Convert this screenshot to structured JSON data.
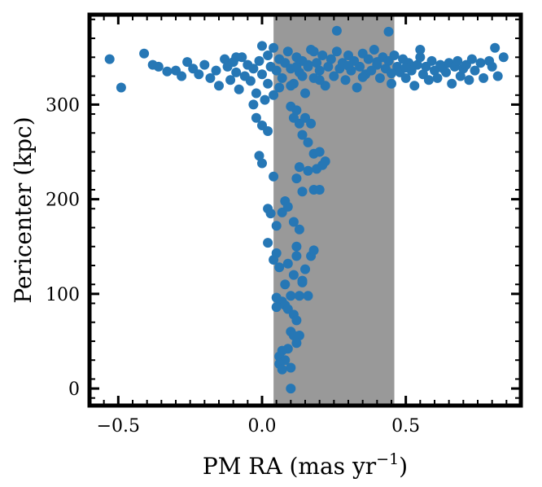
{
  "chart_data": {
    "type": "scatter",
    "xlabel": "PM RA (mas yr",
    "xlabel_sup": "−1",
    "xlabel_end": ")",
    "ylabel": "Pericenter (kpc)",
    "xlim": [
      -0.6,
      0.9
    ],
    "ylim": [
      -18,
      395
    ],
    "xticks": [
      {
        "value": -0.5,
        "label": "−0.5"
      },
      {
        "value": 0.0,
        "label": "0.0"
      },
      {
        "value": 0.5,
        "label": "0.5"
      }
    ],
    "yticks": [
      {
        "value": 0,
        "label": "0"
      },
      {
        "value": 100,
        "label": "100"
      },
      {
        "value": 200,
        "label": "200"
      },
      {
        "value": 300,
        "label": "300"
      }
    ],
    "shaded_band": {
      "x0": 0.04,
      "x1": 0.46,
      "color": "#999999"
    },
    "point_color": "#2677b5",
    "grid": false,
    "series": [
      {
        "points": [
          [
            -0.53,
            348
          ],
          [
            -0.49,
            318
          ],
          [
            -0.41,
            354
          ],
          [
            -0.38,
            342
          ],
          [
            -0.36,
            340
          ],
          [
            -0.33,
            335
          ],
          [
            -0.3,
            336
          ],
          [
            -0.28,
            330
          ],
          [
            -0.26,
            345
          ],
          [
            -0.24,
            338
          ],
          [
            -0.22,
            332
          ],
          [
            -0.2,
            342
          ],
          [
            -0.18,
            328
          ],
          [
            -0.16,
            336
          ],
          [
            -0.15,
            320
          ],
          [
            -0.13,
            348
          ],
          [
            -0.12,
            340
          ],
          [
            -0.11,
            326
          ],
          [
            -0.1,
            345
          ],
          [
            -0.09,
            334
          ],
          [
            -0.08,
            316
          ],
          [
            -0.07,
            350
          ],
          [
            -0.06,
            330
          ],
          [
            -0.05,
            342
          ],
          [
            -0.04,
            325
          ],
          [
            -0.03,
            338
          ],
          [
            -0.02,
            312
          ],
          [
            -0.01,
            346
          ],
          [
            0.0,
            332
          ],
          [
            0.01,
            305
          ],
          [
            0.02,
            352
          ],
          [
            0.02,
            322
          ],
          [
            0.03,
            340
          ],
          [
            0.04,
            310
          ],
          [
            0.04,
            360
          ],
          [
            0.05,
            336
          ],
          [
            0.06,
            348
          ],
          [
            0.06,
            318
          ],
          [
            0.07,
            328
          ],
          [
            0.08,
            344
          ],
          [
            0.09,
            356
          ],
          [
            0.1,
            338
          ],
          [
            0.11,
            322
          ],
          [
            0.12,
            350
          ],
          [
            0.13,
            334
          ],
          [
            0.14,
            346
          ],
          [
            0.15,
            312
          ],
          [
            0.16,
            340
          ],
          [
            0.17,
            358
          ],
          [
            0.18,
            328
          ],
          [
            0.19,
            344
          ],
          [
            0.2,
            336
          ],
          [
            0.21,
            352
          ],
          [
            0.22,
            320
          ],
          [
            0.23,
            340
          ],
          [
            0.24,
            348
          ],
          [
            0.25,
            330
          ],
          [
            0.26,
            356
          ],
          [
            0.27,
            338
          ],
          [
            0.28,
            344
          ],
          [
            0.29,
            326
          ],
          [
            0.3,
            352
          ],
          [
            0.31,
            336
          ],
          [
            0.32,
            346
          ],
          [
            0.33,
            318
          ],
          [
            0.34,
            340
          ],
          [
            0.35,
            354
          ],
          [
            0.36,
            332
          ],
          [
            0.37,
            348
          ],
          [
            0.38,
            336
          ],
          [
            0.39,
            358
          ],
          [
            0.4,
            342
          ],
          [
            0.41,
            328
          ],
          [
            0.42,
            350
          ],
          [
            0.43,
            338
          ],
          [
            0.44,
            346
          ],
          [
            0.45,
            322
          ],
          [
            0.46,
            352
          ],
          [
            0.47,
            340
          ],
          [
            0.48,
            334
          ],
          [
            0.49,
            348
          ],
          [
            0.5,
            328
          ],
          [
            0.51,
            344
          ],
          [
            0.52,
            336
          ],
          [
            0.53,
            320
          ],
          [
            0.54,
            342
          ],
          [
            0.55,
            350
          ],
          [
            0.56,
            332
          ],
          [
            0.57,
            340
          ],
          [
            0.58,
            326
          ],
          [
            0.59,
            346
          ],
          [
            0.6,
            336
          ],
          [
            0.61,
            328
          ],
          [
            0.62,
            342
          ],
          [
            0.63,
            338
          ],
          [
            0.64,
            334
          ],
          [
            0.65,
            344
          ],
          [
            0.66,
            322
          ],
          [
            0.67,
            340
          ],
          [
            0.68,
            346
          ],
          [
            0.69,
            330
          ],
          [
            0.7,
            338
          ],
          [
            0.71,
            342
          ],
          [
            0.72,
            326
          ],
          [
            0.73,
            348
          ],
          [
            0.74,
            336
          ],
          [
            0.76,
            344
          ],
          [
            0.77,
            328
          ],
          [
            0.79,
            346
          ],
          [
            0.8,
            340
          ],
          [
            0.81,
            360
          ],
          [
            0.82,
            330
          ],
          [
            0.84,
            350
          ],
          [
            0.26,
            378
          ],
          [
            0.44,
            377
          ],
          [
            -0.09,
            350
          ],
          [
            0.0,
            362
          ],
          [
            0.18,
            356
          ],
          [
            0.55,
            358
          ],
          [
            0.1,
            320
          ],
          [
            0.12,
            340
          ],
          [
            0.14,
            330
          ],
          [
            0.16,
            342
          ],
          [
            0.2,
            326
          ],
          [
            0.3,
            341
          ],
          [
            0.35,
            329
          ],
          [
            0.4,
            345
          ],
          [
            0.45,
            333
          ],
          [
            0.5,
            339
          ],
          [
            -0.03,
            300
          ],
          [
            -0.02,
            286
          ],
          [
            0.0,
            278
          ],
          [
            0.02,
            272
          ],
          [
            -0.01,
            246
          ],
          [
            0.0,
            238
          ],
          [
            0.04,
            224
          ],
          [
            0.1,
            298
          ],
          [
            0.11,
            286
          ],
          [
            0.12,
            294
          ],
          [
            0.13,
            280
          ],
          [
            0.14,
            268
          ],
          [
            0.15,
            286
          ],
          [
            0.16,
            260
          ],
          [
            0.17,
            280
          ],
          [
            0.18,
            248
          ],
          [
            0.19,
            232
          ],
          [
            0.2,
            250
          ],
          [
            0.21,
            236
          ],
          [
            0.22,
            240
          ],
          [
            0.18,
            210
          ],
          [
            0.2,
            210
          ],
          [
            0.14,
            208
          ],
          [
            0.12,
            222
          ],
          [
            0.13,
            234
          ],
          [
            0.16,
            230
          ],
          [
            0.08,
            198
          ],
          [
            0.07,
            186
          ],
          [
            0.09,
            192
          ],
          [
            0.02,
            190
          ],
          [
            0.03,
            185
          ],
          [
            0.05,
            172
          ],
          [
            0.13,
            168
          ],
          [
            0.11,
            176
          ],
          [
            0.12,
            150
          ],
          [
            0.02,
            154
          ],
          [
            0.05,
            143
          ],
          [
            0.04,
            136
          ],
          [
            0.06,
            128
          ],
          [
            0.09,
            132
          ],
          [
            0.12,
            140
          ],
          [
            0.15,
            126
          ],
          [
            0.17,
            140
          ],
          [
            0.18,
            146
          ],
          [
            0.14,
            112
          ],
          [
            0.16,
            98
          ],
          [
            0.1,
            98
          ],
          [
            0.13,
            98
          ],
          [
            0.07,
            92
          ],
          [
            0.05,
            96
          ],
          [
            0.05,
            86
          ],
          [
            0.08,
            88
          ],
          [
            0.09,
            84
          ],
          [
            0.11,
            78
          ],
          [
            0.12,
            72
          ],
          [
            0.1,
            60
          ],
          [
            0.11,
            56
          ],
          [
            0.13,
            56
          ],
          [
            0.12,
            48
          ],
          [
            0.09,
            42
          ],
          [
            0.07,
            40
          ],
          [
            0.06,
            34
          ],
          [
            0.08,
            30
          ],
          [
            0.1,
            22
          ],
          [
            0.06,
            26
          ],
          [
            0.07,
            20
          ],
          [
            0.1,
            0
          ],
          [
            0.11,
            120
          ],
          [
            0.14,
            114
          ],
          [
            0.08,
            110
          ]
        ]
      }
    ]
  }
}
